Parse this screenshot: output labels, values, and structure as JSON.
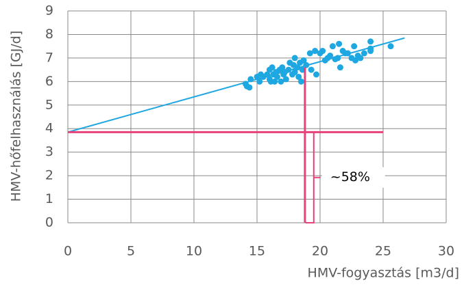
{
  "chart_data": {
    "type": "scatter",
    "xlabel": "HMV-fogyasztás [m3/d]",
    "ylabel": "HMV-hőfelhasználás [GJ/d]",
    "xlim": [
      0,
      30
    ],
    "ylim": [
      0,
      9
    ],
    "xticks": [
      0,
      5,
      10,
      15,
      20,
      25,
      30
    ],
    "yticks": [
      0,
      1,
      2,
      3,
      4,
      5,
      6,
      7,
      8,
      9
    ],
    "grid": true,
    "color": "#1ea7e1",
    "x": [
      14.1,
      14.2,
      14.4,
      14.5,
      15,
      15.2,
      15.3,
      15.5,
      15.8,
      16,
      16,
      16.1,
      16.2,
      16.3,
      16.4,
      16.5,
      16.6,
      16.8,
      16.9,
      17,
      17.1,
      17.2,
      17.3,
      17.5,
      17.6,
      17.8,
      17.9,
      18,
      18,
      18.2,
      18.3,
      18.4,
      18.5,
      18.6,
      18.7,
      18.9,
      19.2,
      19.3,
      19.6,
      19.7,
      20,
      20.2,
      20.4,
      20.6,
      20.8,
      21,
      21.2,
      21.4,
      21.5,
      21.6,
      21.8,
      22,
      22.2,
      22.5,
      22.7,
      22.8,
      23,
      23.2,
      23.5,
      24,
      24,
      24,
      25.6
    ],
    "y": [
      5.9,
      5.8,
      5.75,
      6.1,
      6.2,
      6.0,
      6.3,
      6.2,
      6.3,
      6.1,
      6.5,
      6.0,
      6.6,
      6.3,
      6.0,
      6.4,
      6.2,
      6.5,
      6.0,
      6.6,
      6.3,
      6.4,
      6.1,
      6.5,
      6.8,
      6.3,
      6.7,
      7.0,
      6.4,
      6.6,
      6.2,
      6.8,
      6.0,
      6.5,
      6.9,
      6.7,
      7.2,
      6.5,
      7.3,
      6.3,
      7.2,
      7.3,
      6.9,
      7.0,
      7.1,
      7.5,
      6.95,
      7.0,
      7.6,
      6.6,
      7.3,
      7.2,
      7.2,
      7.0,
      7.5,
      6.9,
      7.1,
      7.0,
      7.2,
      7.4,
      7.7,
      7.3,
      7.5
    ],
    "trendline": {
      "color": "#1ea7e1",
      "x": [
        0,
        26.7
      ],
      "y": [
        3.85,
        7.85
      ]
    },
    "reference_color": "#e8407a",
    "hline": {
      "y": 3.85,
      "x": [
        0,
        25
      ]
    },
    "vline": {
      "x": 18.8,
      "y": [
        0,
        6.6
      ]
    },
    "bracket": {
      "x": 19.5,
      "y": [
        0,
        3.85
      ],
      "label": "~58%"
    }
  }
}
